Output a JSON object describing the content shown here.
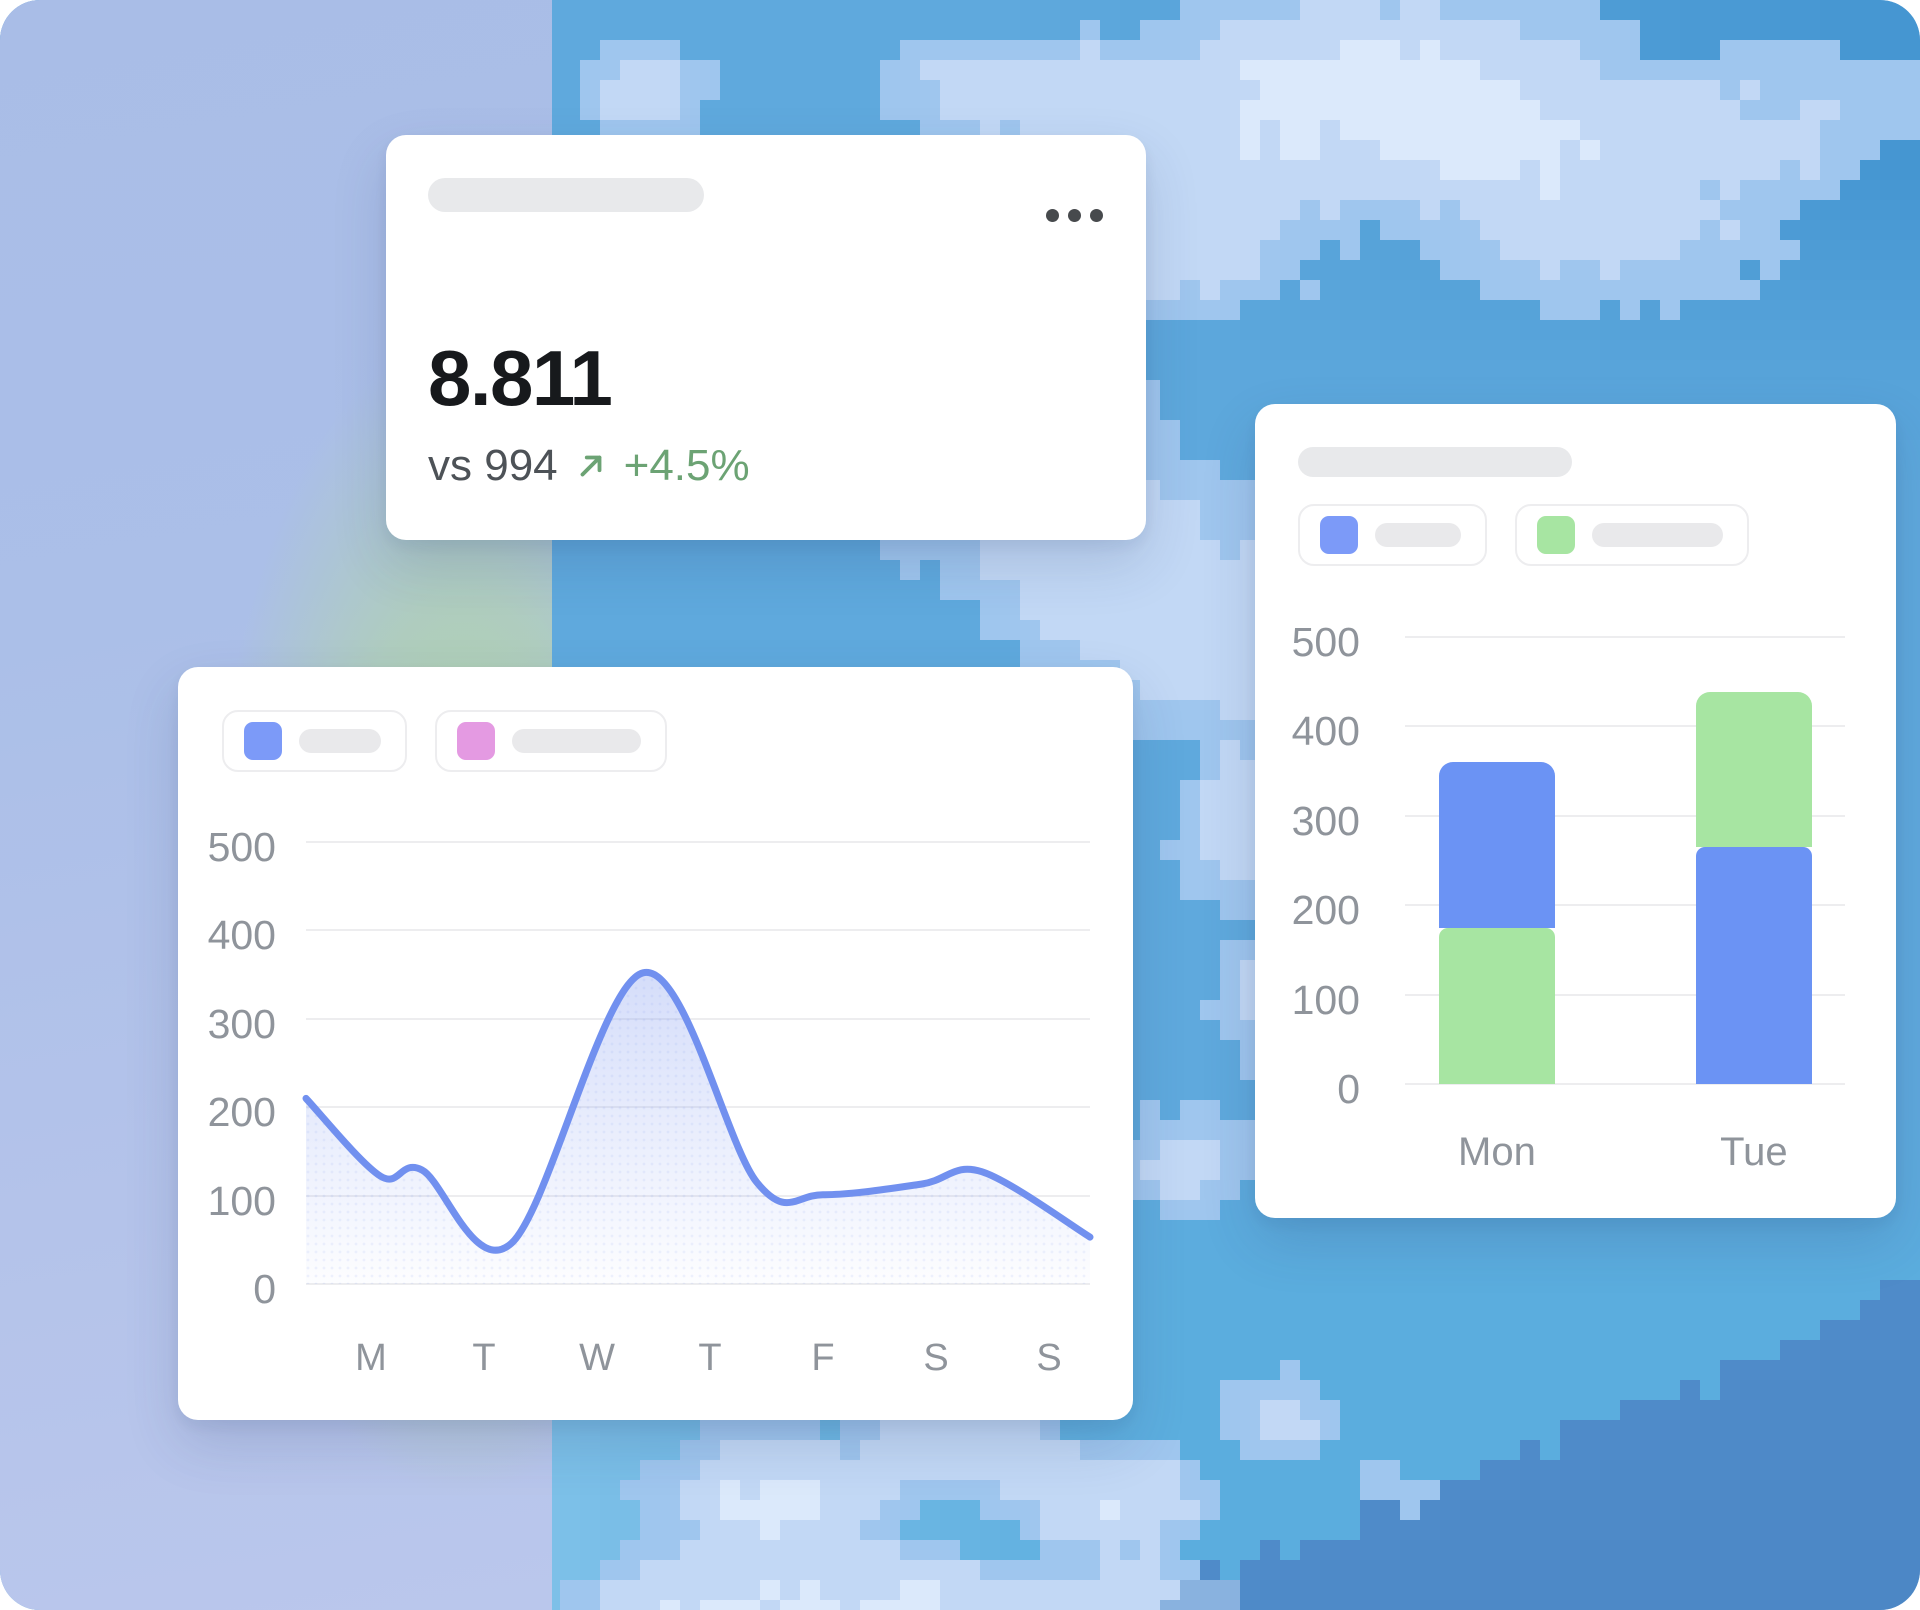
{
  "kpi_card": {
    "value": "8.811",
    "comparison": "vs 994",
    "trend": "+4.5%",
    "trend_direction": "up",
    "trend_color": "#6ca374",
    "menu_icon": "ellipsis-icon"
  },
  "line_chart_card": {
    "legend": [
      {
        "swatch_color": "#7c9af8",
        "label_placeholder": true
      },
      {
        "swatch_color": "#e49ae2",
        "label_placeholder": true
      }
    ]
  },
  "bar_chart_card": {
    "legend": [
      {
        "swatch_color": "#7c9af8",
        "label_placeholder": true
      },
      {
        "swatch_color": "#a7e5a2",
        "label_placeholder": true
      }
    ]
  },
  "chart_data": [
    {
      "id": "weekly-trend",
      "type": "area-line",
      "x_tick_labels": [
        "M",
        "T",
        "W",
        "T",
        "F",
        "S",
        "S"
      ],
      "y_tick_labels": [
        500,
        400,
        300,
        200,
        100,
        0
      ],
      "ylim": [
        0,
        500
      ],
      "grid": "horizontal",
      "legend_position": "top",
      "line_color": "#7190ef",
      "area_fill_top": "rgba(144,166,242,0.38)",
      "area_fill_bottom": "rgba(144,166,242,0.02)",
      "values_at_day_labels": [
        122,
        55,
        310,
        195,
        101,
        115,
        92
      ],
      "peak_value": 352,
      "start_value": 210,
      "end_value": 53,
      "points": [
        {
          "x": 0.0,
          "y": 210
        },
        {
          "x": 0.095,
          "y": 122
        },
        {
          "x": 0.148,
          "y": 129
        },
        {
          "x": 0.262,
          "y": 46
        },
        {
          "x": 0.43,
          "y": 352
        },
        {
          "x": 0.575,
          "y": 115
        },
        {
          "x": 0.66,
          "y": 101
        },
        {
          "x": 0.785,
          "y": 113
        },
        {
          "x": 0.862,
          "y": 127
        },
        {
          "x": 1.0,
          "y": 53
        }
      ]
    },
    {
      "id": "daily-stacked",
      "type": "stacked-bar",
      "categories": [
        "Mon",
        "Tue"
      ],
      "y_tick_labels": [
        500,
        400,
        300,
        200,
        100,
        0
      ],
      "ylim": [
        0,
        500
      ],
      "grid": "horizontal",
      "legend_position": "top",
      "series_colors": {
        "blue": "#6b93f4",
        "green": "#a7e5a2"
      },
      "bars": [
        {
          "category": "Mon",
          "total": 360,
          "segments": [
            {
              "series": "green",
              "value": 175
            },
            {
              "series": "blue",
              "value": 185
            }
          ]
        },
        {
          "category": "Tue",
          "total": 438,
          "segments": [
            {
              "series": "blue",
              "value": 265
            },
            {
              "series": "green",
              "value": 173
            }
          ]
        }
      ]
    }
  ],
  "background": {
    "panel_top": "#a9bde7",
    "panel_bottom": "#bac7ec",
    "panel_green": "#b1d79d",
    "sky_deep": "#4495d1",
    "sky_base": "#5fa9dd",
    "sky_bottom_left": "#82c3ea",
    "sky_bottom_right": "#5badde",
    "cloud_1": "#9fc6ee",
    "cloud_2": "#c2d8f5",
    "cloud_3": "#dbe9fb",
    "ridge": "#4f8bc9",
    "ridge_deep": "#4781c0"
  }
}
